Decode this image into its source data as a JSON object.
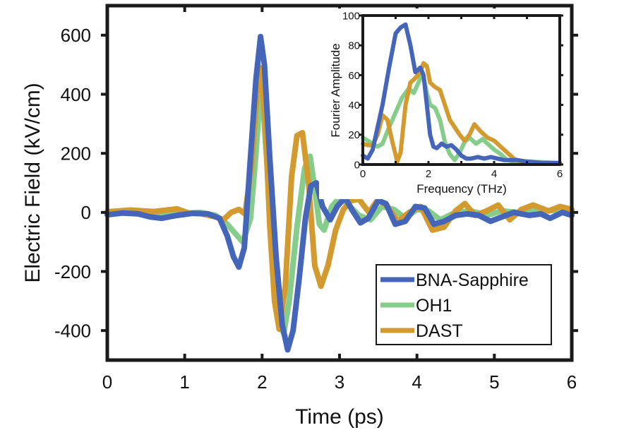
{
  "chart_data": [
    {
      "id": "main",
      "type": "line",
      "title": "",
      "xlabel": "Time (ps)",
      "ylabel": "Electric Field (kV/cm)",
      "xlim": [
        0,
        6
      ],
      "ylim": [
        -500,
        700
      ],
      "xticks": [
        0,
        1,
        2,
        3,
        4,
        5,
        6
      ],
      "xtick_labels": [
        "0",
        "1",
        "2",
        "3",
        "4",
        "5",
        "6"
      ],
      "yticks": [
        -400,
        -200,
        0,
        200,
        400,
        600
      ],
      "ytick_labels": [
        "-400",
        "-200",
        "0",
        "200",
        "400",
        "600"
      ],
      "grid": false,
      "legend_position": "bottom-right",
      "series": [
        {
          "name": "OH1",
          "color": "#86cc8a",
          "x": [
            0,
            0.3,
            0.6,
            0.9,
            1.2,
            1.4,
            1.55,
            1.65,
            1.75,
            1.85,
            1.92,
            1.97,
            2.02,
            2.08,
            2.15,
            2.22,
            2.28,
            2.35,
            2.45,
            2.55,
            2.62,
            2.68,
            2.74,
            2.8,
            2.9,
            3.0,
            3.1,
            3.25,
            3.4,
            3.55,
            3.7,
            3.85,
            4.0,
            4.15,
            4.3,
            4.5,
            4.7,
            4.9,
            5.1,
            5.3,
            5.5,
            5.7,
            5.9,
            6.0
          ],
          "y": [
            0,
            5,
            0,
            -5,
            0,
            -10,
            -40,
            -70,
            -100,
            -20,
            200,
            390,
            330,
            100,
            -150,
            -380,
            -410,
            -300,
            -50,
            150,
            190,
            80,
            -40,
            -60,
            20,
            50,
            30,
            -10,
            -25,
            20,
            10,
            -20,
            10,
            5,
            -25,
            0,
            5,
            -10,
            5,
            0,
            10,
            5,
            10,
            5
          ]
        },
        {
          "name": "DAST",
          "color": "#d29a2f",
          "x": [
            0,
            0.3,
            0.6,
            0.9,
            1.05,
            1.2,
            1.4,
            1.5,
            1.6,
            1.7,
            1.78,
            1.86,
            1.93,
            1.98,
            2.04,
            2.1,
            2.16,
            2.22,
            2.3,
            2.38,
            2.45,
            2.52,
            2.6,
            2.68,
            2.76,
            2.85,
            2.95,
            3.05,
            3.15,
            3.25,
            3.38,
            3.5,
            3.62,
            3.75,
            3.9,
            4.05,
            4.2,
            4.35,
            4.5,
            4.62,
            4.75,
            4.9,
            5.05,
            5.2,
            5.35,
            5.5,
            5.7,
            5.85,
            6.0
          ],
          "y": [
            2,
            8,
            3,
            12,
            -2,
            -4,
            -15,
            -25,
            0,
            10,
            -5,
            150,
            400,
            490,
            300,
            -50,
            -300,
            -395,
            -250,
            120,
            260,
            270,
            100,
            -180,
            -250,
            -180,
            -60,
            10,
            40,
            45,
            0,
            45,
            20,
            -30,
            0,
            20,
            -60,
            -50,
            5,
            30,
            -10,
            5,
            25,
            -25,
            10,
            25,
            5,
            20,
            10
          ]
        },
        {
          "name": "BNA-Sapphire",
          "color": "#4566b8",
          "x": [
            0,
            0.2,
            0.4,
            0.55,
            0.7,
            0.9,
            1.1,
            1.3,
            1.45,
            1.55,
            1.63,
            1.7,
            1.77,
            1.84,
            1.92,
            1.98,
            2.03,
            2.1,
            2.18,
            2.26,
            2.33,
            2.4,
            2.48,
            2.56,
            2.63,
            2.7,
            2.78,
            2.88,
            2.97,
            3.07,
            3.17,
            3.27,
            3.37,
            3.5,
            3.6,
            3.72,
            3.85,
            3.98,
            4.1,
            4.22,
            4.35,
            4.5,
            4.65,
            4.8,
            4.95,
            5.1,
            5.25,
            5.45,
            5.6,
            5.72,
            5.88,
            6.0
          ],
          "y": [
            -8,
            -2,
            -5,
            -15,
            -20,
            -10,
            -3,
            -5,
            -20,
            -80,
            -150,
            -185,
            -120,
            150,
            450,
            595,
            500,
            180,
            -150,
            -380,
            -465,
            -400,
            -220,
            -20,
            90,
            100,
            20,
            -25,
            20,
            50,
            5,
            -35,
            -20,
            40,
            30,
            -40,
            -30,
            20,
            15,
            -40,
            -30,
            -10,
            -5,
            -10,
            -30,
            -15,
            0,
            -10,
            -5,
            -20,
            0,
            -10
          ]
        }
      ],
      "legend": [
        "BNA-Sapphire",
        "OH1",
        "DAST"
      ]
    },
    {
      "id": "inset",
      "type": "line",
      "title": "",
      "xlabel": "Frequency (THz)",
      "ylabel": "Fourier Amplitude",
      "xlim": [
        0,
        6
      ],
      "ylim": [
        0,
        100
      ],
      "xticks": [
        0,
        2,
        4,
        6
      ],
      "xtick_labels": [
        "0",
        "2",
        "4",
        "6"
      ],
      "yticks": [
        0,
        20,
        40,
        60,
        80,
        100
      ],
      "ytick_labels": [
        "0",
        "20",
        "40",
        "60",
        "80",
        "100"
      ],
      "grid": false,
      "series": [
        {
          "name": "OH1",
          "color": "#86cc8a",
          "x": [
            0,
            0.15,
            0.3,
            0.45,
            0.6,
            0.8,
            1.0,
            1.2,
            1.4,
            1.55,
            1.7,
            1.82,
            1.95,
            2.05,
            2.2,
            2.35,
            2.5,
            2.65,
            2.8,
            2.95,
            3.1,
            3.25,
            3.45,
            3.65,
            3.85,
            4.0,
            4.2,
            4.4,
            4.6,
            4.8,
            5.0,
            5.5,
            6.0
          ],
          "y": [
            18,
            16,
            14,
            12,
            14,
            25,
            35,
            45,
            51,
            48,
            55,
            62,
            48,
            40,
            38,
            30,
            15,
            7,
            3,
            8,
            15,
            18,
            14,
            17,
            13,
            10,
            7,
            3,
            2,
            2,
            2,
            1.5,
            1
          ]
        },
        {
          "name": "DAST",
          "color": "#d29a2f",
          "x": [
            0,
            0.15,
            0.3,
            0.45,
            0.6,
            0.75,
            0.9,
            1.05,
            1.15,
            1.3,
            1.45,
            1.6,
            1.75,
            1.85,
            1.95,
            2.05,
            2.2,
            2.35,
            2.5,
            2.65,
            2.8,
            2.95,
            3.1,
            3.25,
            3.4,
            3.6,
            3.8,
            4.0,
            4.2,
            4.4,
            4.6,
            4.8,
            5.0,
            5.5,
            6.0
          ],
          "y": [
            14,
            13,
            13,
            20,
            33,
            30,
            15,
            2,
            8,
            40,
            55,
            58,
            62,
            68,
            66,
            55,
            52,
            50,
            40,
            30,
            25,
            20,
            16,
            20,
            27,
            22,
            18,
            16,
            12,
            8,
            4,
            2,
            1,
            1,
            1
          ]
        },
        {
          "name": "BNA-Sapphire",
          "color": "#4566b8",
          "x": [
            0,
            0.15,
            0.3,
            0.45,
            0.6,
            0.8,
            1.0,
            1.15,
            1.3,
            1.45,
            1.6,
            1.75,
            1.85,
            1.95,
            2.05,
            2.15,
            2.25,
            2.4,
            2.55,
            2.7,
            2.85,
            3.0,
            3.15,
            3.3,
            3.5,
            3.7,
            3.9,
            4.1,
            4.3,
            4.5,
            4.7,
            5.0,
            5.5,
            6.0
          ],
          "y": [
            6,
            4,
            10,
            25,
            40,
            65,
            88,
            92,
            94,
            80,
            62,
            65,
            60,
            40,
            20,
            12,
            11,
            14,
            12,
            13,
            10,
            6,
            4,
            4,
            5,
            4,
            5,
            4,
            3,
            3,
            3,
            2,
            1,
            1
          ]
        }
      ]
    }
  ]
}
